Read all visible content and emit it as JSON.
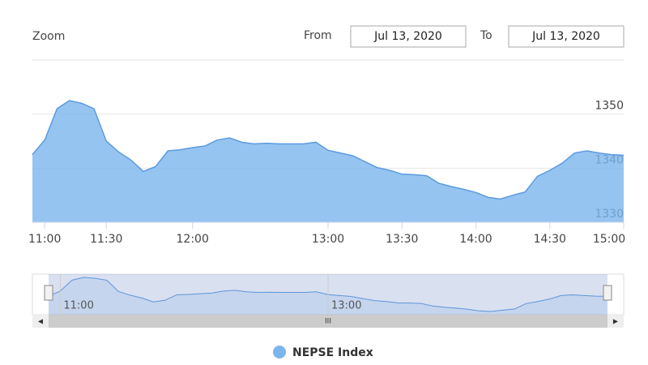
{
  "chart_data": {
    "type": "area",
    "range_selector": {
      "zoom_label": "Zoom",
      "from_label": "From",
      "from": "Jul 13, 2020",
      "to_label": "To",
      "to": "Jul 13, 2020"
    },
    "x": [
      "10:55",
      "11:00",
      "11:06",
      "11:12",
      "11:18",
      "11:24",
      "11:30",
      "11:34",
      "11:38",
      "11:43",
      "11:47",
      "11:51",
      "11:56",
      "12:00",
      "12:05",
      "12:11",
      "12:16",
      "12:22",
      "12:27",
      "12:33",
      "12:38",
      "12:44",
      "12:49",
      "12:55",
      "13:00",
      "13:05",
      "13:10",
      "13:15",
      "13:20",
      "13:25",
      "13:30",
      "13:35",
      "13:40",
      "13:45",
      "13:50",
      "13:55",
      "14:00",
      "14:05",
      "14:10",
      "14:15",
      "14:20",
      "14:25",
      "14:30",
      "14:35",
      "14:40",
      "14:45",
      "14:50",
      "14:55",
      "15:00"
    ],
    "series": [
      {
        "name": "NEPSE Index",
        "color": "#7cb5ec",
        "values": [
          1342.5,
          1345.2,
          1351,
          1352.5,
          1352,
          1351,
          1345,
          1343,
          1341.5,
          1339.4,
          1340.3,
          1343.2,
          1343.4,
          1343.8,
          1344.1,
          1345.2,
          1345.6,
          1344.8,
          1344.5,
          1344.6,
          1344.5,
          1344.5,
          1344.5,
          1344.8,
          1343.3,
          1342.8,
          1342.3,
          1341.2,
          1340.1,
          1339.6,
          1338.9,
          1338.8,
          1338.6,
          1337.2,
          1336.6,
          1336.1,
          1335.5,
          1334.6,
          1334.3,
          1335,
          1335.6,
          1338.5,
          1339.6,
          1340.9,
          1342.8,
          1343.2,
          1342.8,
          1342.5,
          1342.4
        ]
      }
    ],
    "xticks": [
      "11:00",
      "11:30",
      "12:00",
      "13:00",
      "13:30",
      "14:00",
      "14:30",
      "15:00"
    ],
    "navigator_ticks": [
      "11:00",
      "13:00"
    ],
    "ylim": [
      1330,
      1360
    ],
    "yticks": [
      1330,
      1340,
      1350
    ],
    "grid": true
  }
}
